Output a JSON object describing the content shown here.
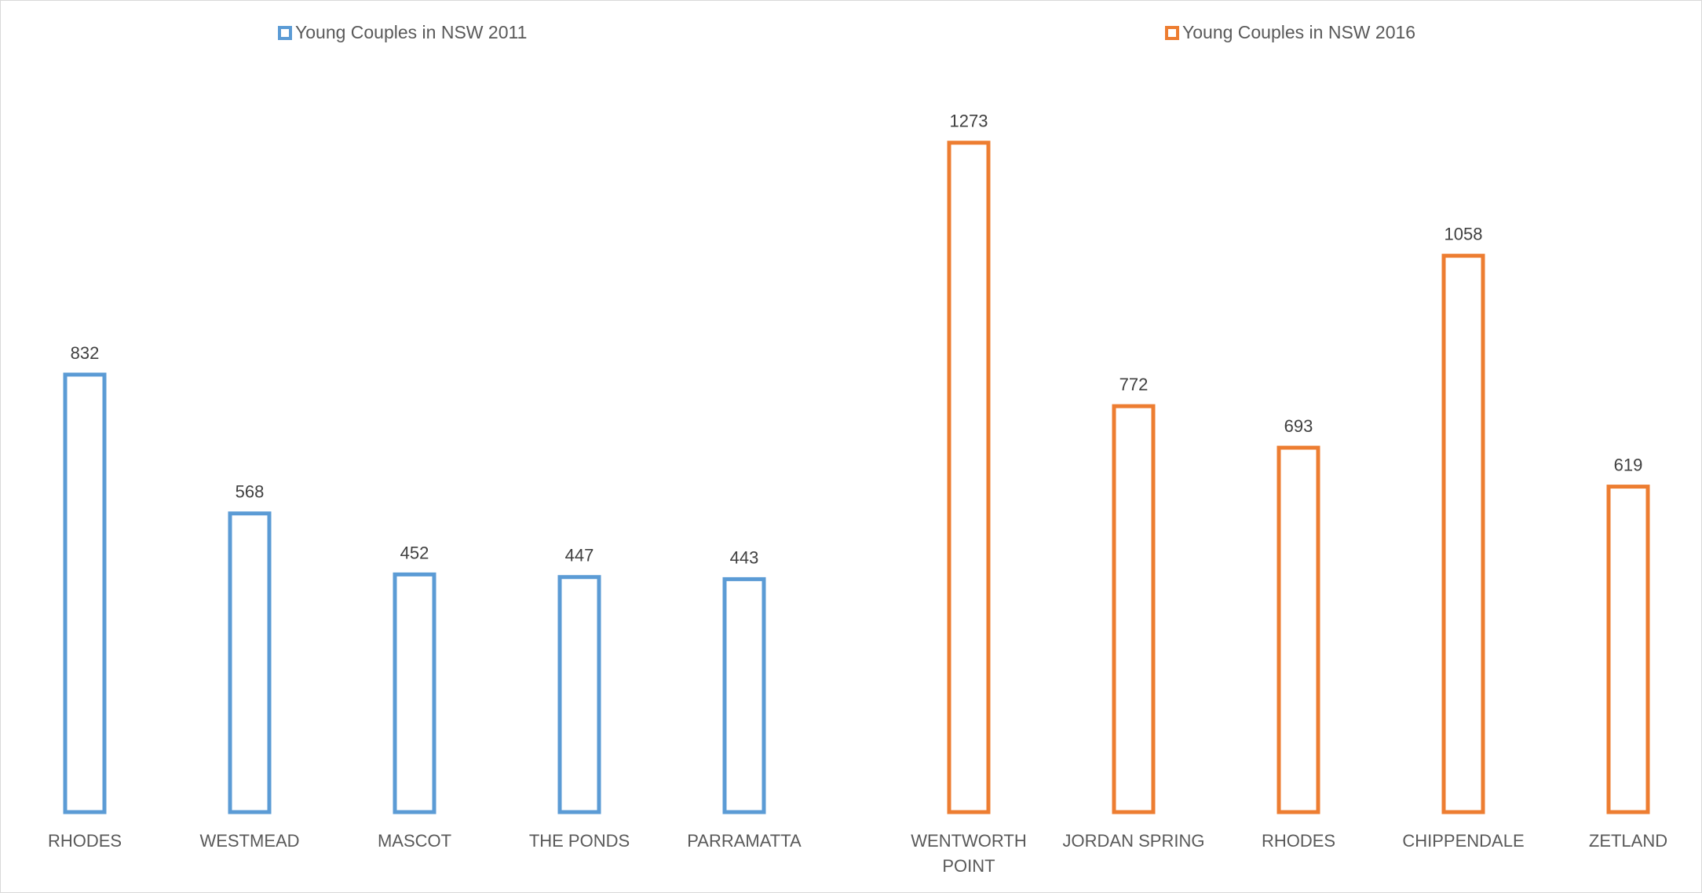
{
  "chart_data": {
    "type": "bar",
    "ylim": [
      0,
      1300
    ],
    "legend_position": "top",
    "grid": false,
    "series": [
      {
        "name": "Young Couples in NSW 2011",
        "color": "#5b9bd5",
        "categories": [
          "RHODES",
          "WESTMEAD",
          "MASCOT",
          "THE PONDS",
          "PARRAMATTA"
        ],
        "values": [
          832,
          568,
          452,
          447,
          443
        ]
      },
      {
        "name": "Young Couples in NSW 2016",
        "color": "#ed7d31",
        "categories": [
          "WENTWORTH POINT",
          "JORDAN SPRING",
          "RHODES",
          "CHIPPENDALE",
          "ZETLAND"
        ],
        "values": [
          1273,
          772,
          693,
          1058,
          619
        ]
      }
    ]
  }
}
